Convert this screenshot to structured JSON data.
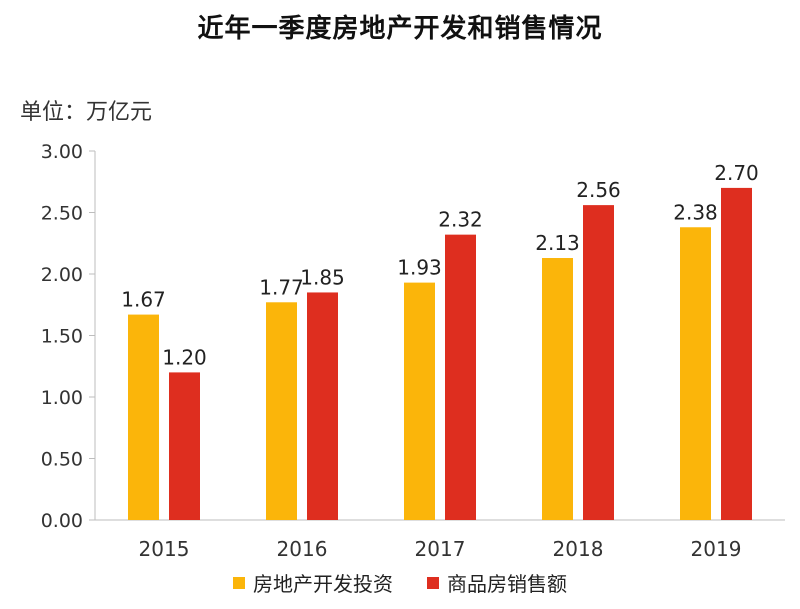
{
  "colors": {
    "investment": "#FBB50A",
    "sales": "#DE2E1F",
    "axis": "#bdbdbd",
    "text": "#333333"
  },
  "chart_data": {
    "type": "bar",
    "title": "近年一季度房地产开发和销售情况",
    "unit_label": "单位：万亿元",
    "categories": [
      "2015",
      "2016",
      "2017",
      "2018",
      "2019"
    ],
    "series": [
      {
        "name": "房地产开发投资",
        "color": "#FBB50A",
        "values": [
          1.67,
          1.77,
          1.93,
          2.13,
          2.38
        ]
      },
      {
        "name": "商品房销售额",
        "color": "#DE2E1F",
        "values": [
          1.2,
          1.85,
          2.32,
          2.56,
          2.7
        ]
      }
    ],
    "ylim": [
      0,
      3
    ],
    "yticks": [
      "0.00",
      "0.50",
      "1.00",
      "1.50",
      "2.00",
      "2.50",
      "3.00"
    ],
    "grid": false,
    "legend_position": "bottom"
  }
}
